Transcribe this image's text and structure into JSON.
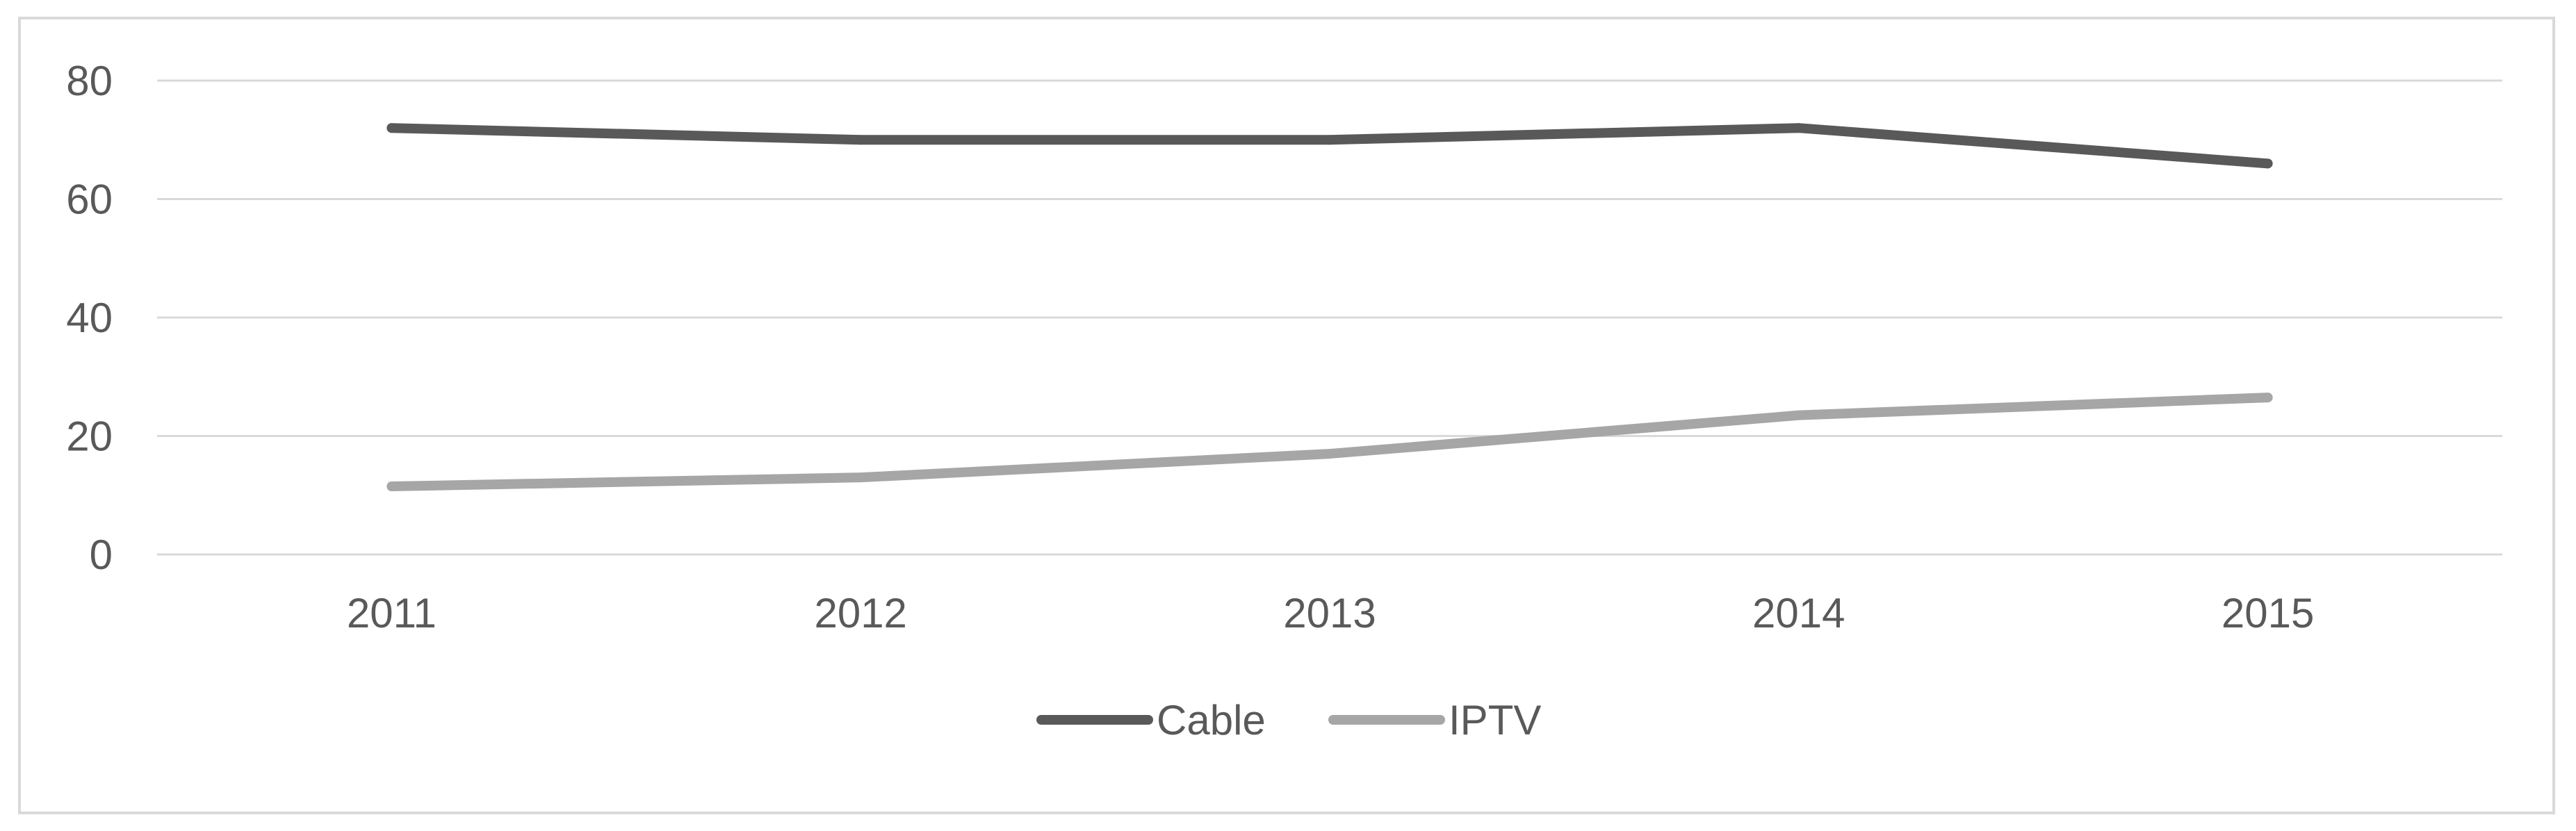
{
  "chart_data": {
    "type": "line",
    "title": "",
    "xlabel": "",
    "ylabel": "",
    "categories": [
      "2011",
      "2012",
      "2013",
      "2014",
      "2015"
    ],
    "ylim": [
      0,
      80
    ],
    "yticks": [
      "0",
      "20",
      "40",
      "60",
      "80"
    ],
    "grid": true,
    "legend_position": "bottom",
    "series": [
      {
        "name": "Cable",
        "values": [
          72,
          70,
          70,
          72,
          66
        ],
        "color": "#595959"
      },
      {
        "name": "IPTV",
        "values": [
          11.5,
          13,
          17,
          23.5,
          26.5
        ],
        "color": "#a6a6a6"
      }
    ]
  }
}
